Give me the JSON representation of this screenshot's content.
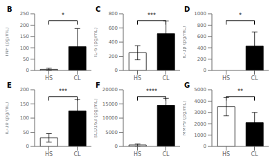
{
  "chart_data": [
    {
      "type": "bar",
      "title": "B",
      "categories": [
        "HS",
        "CL"
      ],
      "values": [
        5,
        105
      ],
      "errors": [
        5,
        80
      ],
      "colors": [
        "white",
        "black"
      ],
      "y_label": "TNF (pg/mL)",
      "ylim": [
        0,
        250
      ],
      "yticks": [
        0,
        50,
        100,
        150,
        200,
        250
      ],
      "annotation": "*",
      "grid": false
    },
    {
      "type": "bar",
      "title": "C",
      "categories": [
        "HS",
        "CL"
      ],
      "values": [
        250,
        520
      ],
      "errors": [
        100,
        180
      ],
      "colors": [
        "white",
        "black"
      ],
      "y_label": "IL-6 (pg/mL)",
      "ylim": [
        0,
        800
      ],
      "yticks": [
        0,
        200,
        400,
        600,
        800
      ],
      "annotation": "***",
      "grid": false
    },
    {
      "type": "bar",
      "title": "D",
      "categories": [
        "HS",
        "CL"
      ],
      "values": [
        0,
        430
      ],
      "errors": [
        0,
        250
      ],
      "colors": [
        "white",
        "black"
      ],
      "y_label": "IL-1β (pg/mL)",
      "ylim": [
        0,
        1000
      ],
      "yticks": [
        0,
        200,
        400,
        600,
        800,
        1000
      ],
      "annotation": "*",
      "grid": false
    },
    {
      "type": "bar",
      "title": "E",
      "categories": [
        "HS",
        "CL"
      ],
      "values": [
        30,
        125
      ],
      "errors": [
        15,
        40
      ],
      "colors": [
        "white",
        "black"
      ],
      "y_label": "IL-10 (pg/mL)",
      "ylim": [
        0,
        200
      ],
      "yticks": [
        0,
        50,
        100,
        150,
        200
      ],
      "annotation": "***",
      "grid": false
    },
    {
      "type": "bar",
      "title": "F",
      "categories": [
        "HS",
        "CL"
      ],
      "values": [
        500,
        14500
      ],
      "errors": [
        400,
        2500
      ],
      "colors": [
        "white",
        "black"
      ],
      "y_label": "sCD163 (pg/mL)",
      "ylim": [
        0,
        20000
      ],
      "yticks": [
        0,
        5000,
        10000,
        15000,
        20000
      ],
      "annotation": "****",
      "grid": false
    },
    {
      "type": "bar",
      "title": "G",
      "categories": [
        "HS",
        "CL"
      ],
      "values": [
        3500,
        2100
      ],
      "errors": [
        800,
        900
      ],
      "colors": [
        "white",
        "black"
      ],
      "y_label": "MMP9 (pg/mL)",
      "ylim": [
        0,
        5000
      ],
      "yticks": [
        0,
        1000,
        2000,
        3000,
        4000,
        5000
      ],
      "annotation": "**",
      "grid": false
    }
  ]
}
